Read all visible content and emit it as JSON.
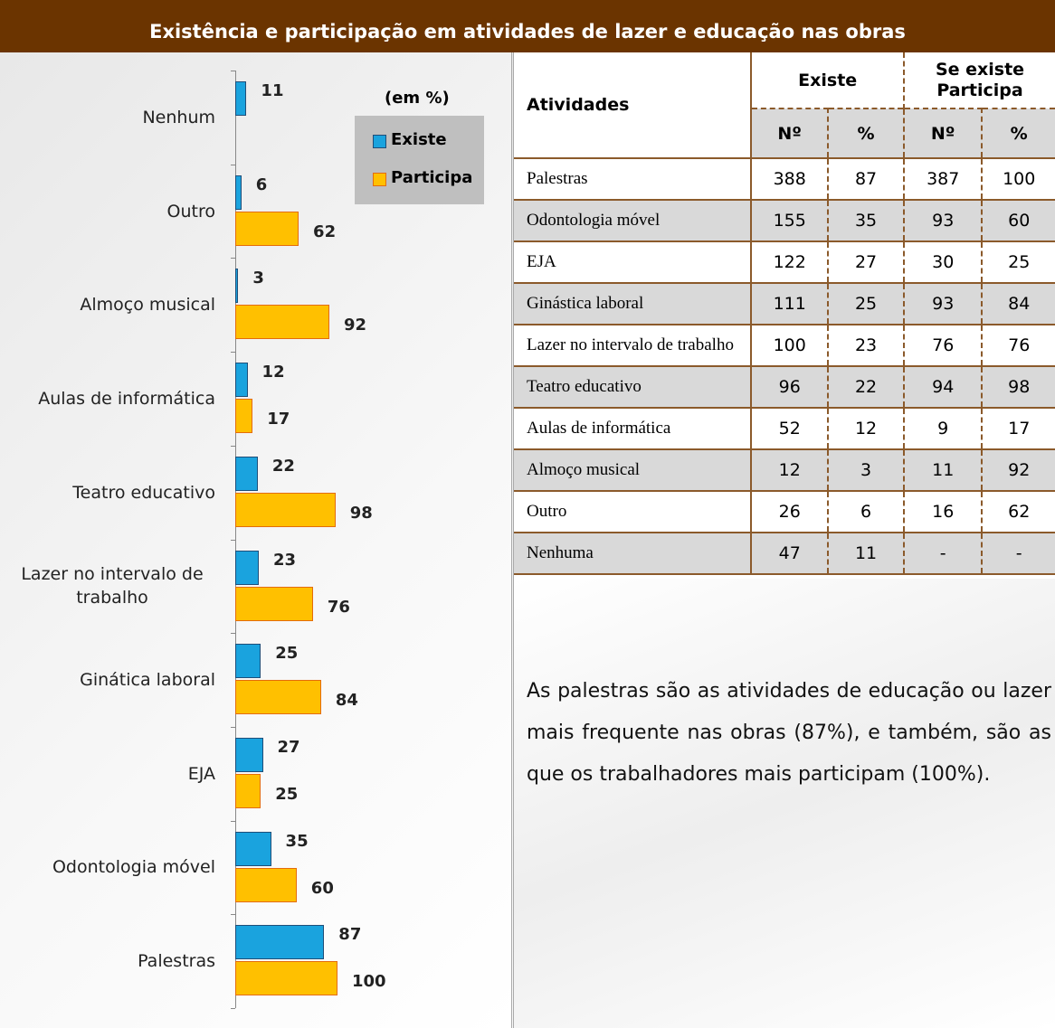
{
  "title": "Existência e participação em atividades de lazer e educação nas obras",
  "chart_data": {
    "type": "hbar",
    "legend_title": "(em %)",
    "categories": [
      "Nenhum",
      "Outro",
      "Almoço musical",
      "Aulas de informática",
      "Teatro educativo",
      "Lazer no intervalo de trabalho",
      "Ginática laboral",
      "EJA",
      "Odontologia móvel",
      "Palestras"
    ],
    "series": [
      {
        "name": "Existe",
        "color": "#1aa3de",
        "values": [
          11,
          6,
          3,
          12,
          22,
          23,
          25,
          27,
          35,
          87
        ]
      },
      {
        "name": "Participa",
        "color": "#ffc000",
        "values": [
          null,
          62,
          92,
          17,
          98,
          76,
          84,
          25,
          60,
          100
        ]
      }
    ],
    "xlim": [
      0,
      250
    ]
  },
  "table": {
    "header": [
      "Atividades",
      "Existe",
      "Se existe Participa"
    ],
    "subheader": [
      "Nº",
      "%",
      "Nº",
      "%"
    ],
    "rows": [
      [
        "Palestras",
        388,
        87,
        387,
        100
      ],
      [
        "Odontologia móvel",
        155,
        35,
        93,
        60
      ],
      [
        "EJA",
        122,
        27,
        30,
        25
      ],
      [
        "Ginástica laboral",
        111,
        25,
        93,
        84
      ],
      [
        "Lazer no intervalo de trabalho",
        100,
        23,
        76,
        76
      ],
      [
        "Teatro educativo",
        96,
        22,
        94,
        98
      ],
      [
        "Aulas de informática",
        52,
        12,
        9,
        17
      ],
      [
        "Almoço musical",
        12,
        3,
        11,
        92
      ],
      [
        "Outro",
        26,
        6,
        16,
        62
      ],
      [
        "Nenhuma",
        47,
        11,
        "-",
        "-"
      ]
    ]
  },
  "note": "As palestras são as atividades de educação ou lazer mais frequente nas obras (87%), e também, são as que os trabalhadores mais participam (100%)."
}
